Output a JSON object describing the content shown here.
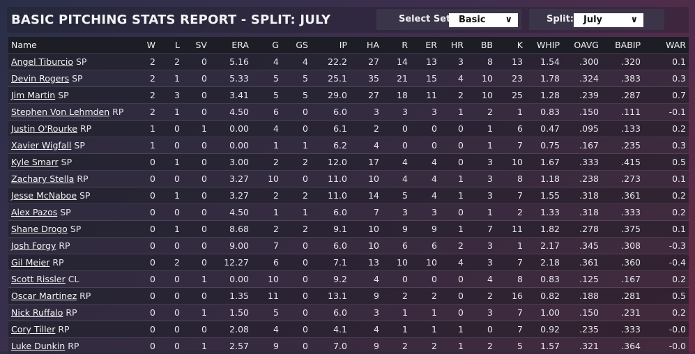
{
  "header": {
    "title": "BASIC PITCHING STATS REPORT - SPLIT: JULY",
    "select_set_label": "Select Set:",
    "select_set_value": "Basic",
    "split_label": "Split:",
    "split_value": "July"
  },
  "columns": [
    "Name",
    "W",
    "L",
    "SV",
    "ERA",
    "G",
    "GS",
    "IP",
    "HA",
    "R",
    "ER",
    "HR",
    "BB",
    "K",
    "WHIP",
    "OAVG",
    "BABIP",
    "WAR"
  ],
  "rows": [
    {
      "name": "Angel Tiburcio",
      "pos": "SP",
      "stats": [
        "2",
        "2",
        "0",
        "5.16",
        "4",
        "4",
        "22.2",
        "27",
        "14",
        "13",
        "3",
        "8",
        "13",
        "1.54",
        ".300",
        ".320",
        "0.1"
      ]
    },
    {
      "name": "Devin Rogers",
      "pos": "SP",
      "stats": [
        "2",
        "1",
        "0",
        "5.33",
        "5",
        "5",
        "25.1",
        "35",
        "21",
        "15",
        "4",
        "10",
        "23",
        "1.78",
        ".324",
        ".383",
        "0.3"
      ]
    },
    {
      "name": "Jim Martin",
      "pos": "SP",
      "stats": [
        "2",
        "3",
        "0",
        "3.41",
        "5",
        "5",
        "29.0",
        "27",
        "18",
        "11",
        "2",
        "10",
        "25",
        "1.28",
        ".239",
        ".287",
        "0.7"
      ]
    },
    {
      "name": "Stephen Von Lehmden",
      "pos": "RP",
      "stats": [
        "2",
        "1",
        "0",
        "4.50",
        "6",
        "0",
        "6.0",
        "3",
        "3",
        "3",
        "1",
        "2",
        "1",
        "0.83",
        ".150",
        ".111",
        "-0.1"
      ]
    },
    {
      "name": "Justin O'Rourke",
      "pos": "RP",
      "stats": [
        "1",
        "0",
        "1",
        "0.00",
        "4",
        "0",
        "6.1",
        "2",
        "0",
        "0",
        "0",
        "1",
        "6",
        "0.47",
        ".095",
        ".133",
        "0.2"
      ]
    },
    {
      "name": "Xavier Wigfall",
      "pos": "SP",
      "stats": [
        "1",
        "0",
        "0",
        "0.00",
        "1",
        "1",
        "6.2",
        "4",
        "0",
        "0",
        "0",
        "1",
        "7",
        "0.75",
        ".167",
        ".235",
        "0.3"
      ]
    },
    {
      "name": "Kyle Smarr",
      "pos": "SP",
      "stats": [
        "0",
        "1",
        "0",
        "3.00",
        "2",
        "2",
        "12.0",
        "17",
        "4",
        "4",
        "0",
        "3",
        "10",
        "1.67",
        ".333",
        ".415",
        "0.5"
      ]
    },
    {
      "name": "Zachary Stella",
      "pos": "RP",
      "stats": [
        "0",
        "0",
        "0",
        "3.27",
        "10",
        "0",
        "11.0",
        "10",
        "4",
        "4",
        "1",
        "3",
        "8",
        "1.18",
        ".238",
        ".273",
        "0.1"
      ]
    },
    {
      "name": "Jesse McNaboe",
      "pos": "SP",
      "stats": [
        "0",
        "1",
        "0",
        "3.27",
        "2",
        "2",
        "11.0",
        "14",
        "5",
        "4",
        "1",
        "3",
        "7",
        "1.55",
        ".318",
        ".361",
        "0.2"
      ]
    },
    {
      "name": "Alex Pazos",
      "pos": "SP",
      "stats": [
        "0",
        "0",
        "0",
        "4.50",
        "1",
        "1",
        "6.0",
        "7",
        "3",
        "3",
        "0",
        "1",
        "2",
        "1.33",
        ".318",
        ".333",
        "0.2"
      ]
    },
    {
      "name": "Shane Drogo",
      "pos": "SP",
      "stats": [
        "0",
        "1",
        "0",
        "8.68",
        "2",
        "2",
        "9.1",
        "10",
        "9",
        "9",
        "1",
        "7",
        "11",
        "1.82",
        ".278",
        ".375",
        "0.1"
      ]
    },
    {
      "name": "Josh Forgy",
      "pos": "RP",
      "stats": [
        "0",
        "0",
        "0",
        "9.00",
        "7",
        "0",
        "6.0",
        "10",
        "6",
        "6",
        "2",
        "3",
        "1",
        "2.17",
        ".345",
        ".308",
        "-0.3"
      ]
    },
    {
      "name": "Gil Meier",
      "pos": "RP",
      "stats": [
        "0",
        "2",
        "0",
        "12.27",
        "6",
        "0",
        "7.1",
        "13",
        "10",
        "10",
        "4",
        "3",
        "7",
        "2.18",
        ".361",
        ".360",
        "-0.4"
      ]
    },
    {
      "name": "Scott Rissler",
      "pos": "CL",
      "stats": [
        "0",
        "0",
        "1",
        "0.00",
        "10",
        "0",
        "9.2",
        "4",
        "0",
        "0",
        "0",
        "4",
        "8",
        "0.83",
        ".125",
        ".167",
        "0.2"
      ]
    },
    {
      "name": "Oscar Martinez",
      "pos": "RP",
      "stats": [
        "0",
        "0",
        "0",
        "1.35",
        "11",
        "0",
        "13.1",
        "9",
        "2",
        "2",
        "0",
        "2",
        "16",
        "0.82",
        ".188",
        ".281",
        "0.5"
      ]
    },
    {
      "name": "Nick Ruffalo",
      "pos": "RP",
      "stats": [
        "0",
        "0",
        "1",
        "1.50",
        "5",
        "0",
        "6.0",
        "3",
        "1",
        "1",
        "0",
        "3",
        "7",
        "1.00",
        ".150",
        ".231",
        "0.2"
      ]
    },
    {
      "name": "Cory Tiller",
      "pos": "RP",
      "stats": [
        "0",
        "0",
        "0",
        "2.08",
        "4",
        "0",
        "4.1",
        "4",
        "1",
        "1",
        "1",
        "0",
        "7",
        "0.92",
        ".235",
        ".333",
        "-0.0"
      ]
    },
    {
      "name": "Luke Dunkin",
      "pos": "RP",
      "stats": [
        "0",
        "0",
        "1",
        "2.57",
        "9",
        "0",
        "7.0",
        "9",
        "2",
        "2",
        "1",
        "2",
        "5",
        "1.57",
        ".321",
        ".364",
        "-0.0"
      ]
    }
  ]
}
